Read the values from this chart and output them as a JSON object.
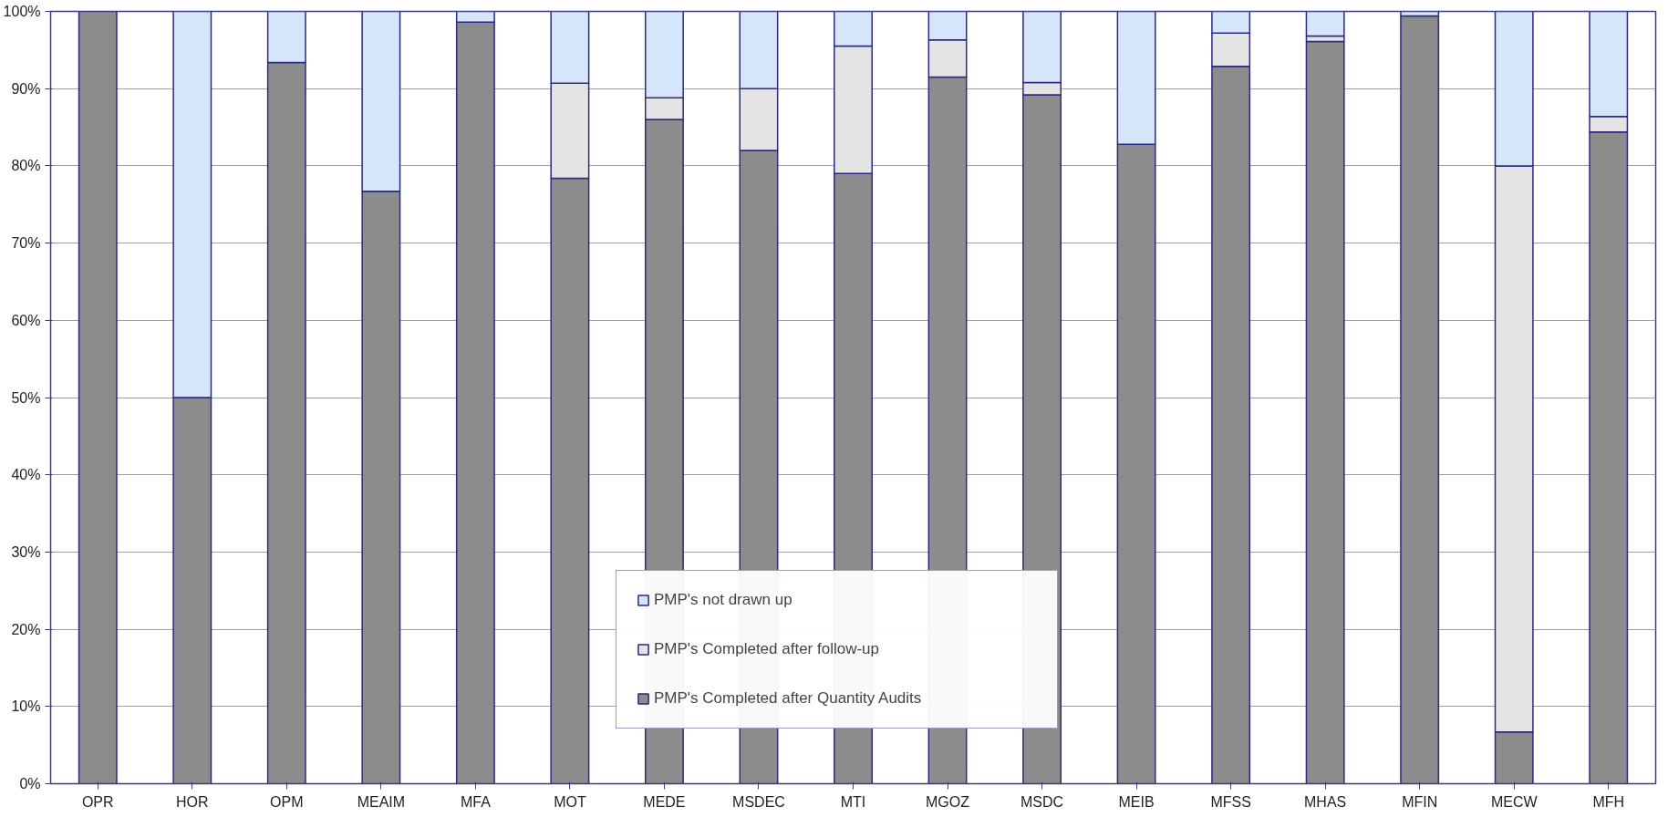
{
  "chart_data": {
    "type": "bar",
    "stacked": true,
    "categories": [
      "OPR",
      "HOR",
      "OPM",
      "MEAIM",
      "MFA",
      "MOT",
      "MEDE",
      "MSDEC",
      "MTI",
      "MGOZ",
      "MSDC",
      "MEIB",
      "MFSS",
      "MHAS",
      "MFIN",
      "MECW",
      "MFH"
    ],
    "series": [
      {
        "name": "PMP's Completed after Quantity Audits",
        "color": "#8c8c8c",
        "values": [
          100,
          50,
          93.4,
          76.7,
          98.6,
          78.4,
          86,
          82,
          79,
          91.5,
          89.2,
          82.8,
          92.9,
          96.1,
          99.4,
          6.7,
          84.4
        ]
      },
      {
        "name": "PMP's Completed after follow-up",
        "color": "#e4e4e4",
        "values": [
          0,
          0,
          0,
          0,
          0,
          12.3,
          2.8,
          8,
          16.5,
          4.8,
          1.6,
          0,
          4.3,
          0.7,
          0,
          73.3,
          2
        ]
      },
      {
        "name": "PMP's not drawn up",
        "color": "#d6e6fa",
        "values": [
          0,
          50,
          6.6,
          23.3,
          1.4,
          9.3,
          11.2,
          10,
          4.5,
          3.7,
          9.2,
          17.2,
          2.8,
          3.2,
          0.6,
          20,
          13.6
        ]
      }
    ],
    "ylim": [
      0,
      100
    ],
    "yticks": [
      {
        "value": 0,
        "label": "0%"
      },
      {
        "value": 10,
        "label": "10%"
      },
      {
        "value": 20,
        "label": "20%"
      },
      {
        "value": 30,
        "label": "30%"
      },
      {
        "value": 40,
        "label": "40%"
      },
      {
        "value": 50,
        "label": "50%"
      },
      {
        "value": 60,
        "label": "60%"
      },
      {
        "value": 70,
        "label": "70%"
      },
      {
        "value": 80,
        "label": "80%"
      },
      {
        "value": 90,
        "label": "90%"
      },
      {
        "value": 100,
        "label": "100%"
      }
    ],
    "grid": "y",
    "legend": "bottom"
  }
}
